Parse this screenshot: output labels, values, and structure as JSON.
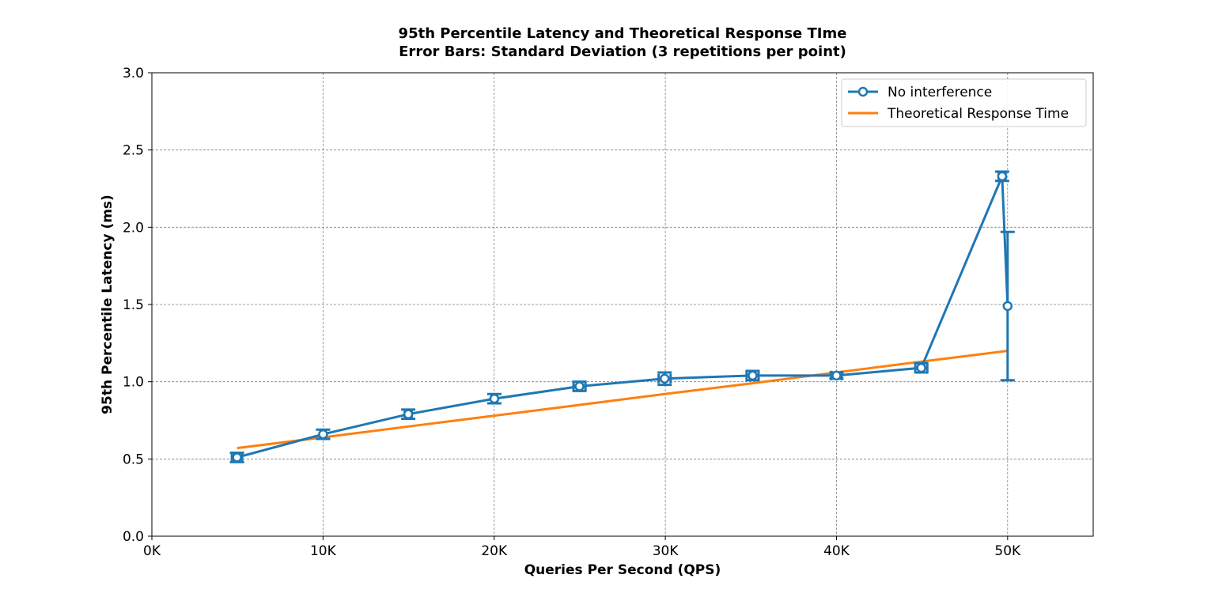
{
  "chart_data": {
    "type": "line",
    "title_line1": "95th Percentile Latency and Theoretical Response TIme",
    "title_line2": "Error Bars: Standard Deviation (3 repetitions per point)",
    "xlabel": "Queries Per Second (QPS)",
    "ylabel": "95th Percentile Latency (ms)",
    "xlim": [
      0,
      55000
    ],
    "ylim": [
      0,
      3.0
    ],
    "x_ticks": [
      0,
      10000,
      20000,
      30000,
      40000,
      50000
    ],
    "x_tick_labels": [
      "0K",
      "10K",
      "20K",
      "30K",
      "40K",
      "50K"
    ],
    "y_ticks": [
      0.0,
      0.5,
      1.0,
      1.5,
      2.0,
      2.5,
      3.0
    ],
    "y_tick_labels": [
      "0.0",
      "0.5",
      "1.0",
      "1.5",
      "2.0",
      "2.5",
      "3.0"
    ],
    "grid": true,
    "legend_position": "top-right",
    "series": [
      {
        "name": "No interference",
        "type": "line-marker-errorbar",
        "color": "#1f77b4",
        "points": [
          {
            "x": 4974,
            "y": 0.51,
            "yerr": 0.03,
            "xerr": 300
          },
          {
            "x": 10004,
            "y": 0.66,
            "yerr": 0.03,
            "xerr": 100
          },
          {
            "x": 14979,
            "y": 0.79,
            "yerr": 0.03,
            "xerr": 200
          },
          {
            "x": 20009,
            "y": 0.89,
            "yerr": 0.03,
            "xerr": 150
          },
          {
            "x": 24984,
            "y": 0.97,
            "yerr": 0.03,
            "xerr": 350
          },
          {
            "x": 29960,
            "y": 1.02,
            "yerr": 0.04,
            "xerr": 350
          },
          {
            "x": 35100,
            "y": 1.04,
            "yerr": 0.03,
            "xerr": 350
          },
          {
            "x": 40000,
            "y": 1.04,
            "yerr": 0.02,
            "xerr": 300
          },
          {
            "x": 44957,
            "y": 1.09,
            "yerr": 0.03,
            "xerr": 350
          },
          {
            "x": 49679,
            "y": 2.33,
            "yerr": 0.03,
            "xerr": 200
          },
          {
            "x": 50000,
            "y": 1.49,
            "yerr": 0.48,
            "xerr": 0
          }
        ]
      },
      {
        "name": "Theoretical Response Time",
        "type": "line",
        "color": "#ff7f0e",
        "points": [
          {
            "x": 4974,
            "y": 0.57
          },
          {
            "x": 10004,
            "y": 0.64
          },
          {
            "x": 14979,
            "y": 0.71
          },
          {
            "x": 20009,
            "y": 0.78
          },
          {
            "x": 24984,
            "y": 0.85
          },
          {
            "x": 29960,
            "y": 0.92
          },
          {
            "x": 35100,
            "y": 0.99
          },
          {
            "x": 40000,
            "y": 1.06
          },
          {
            "x": 44957,
            "y": 1.13
          },
          {
            "x": 50000,
            "y": 1.2
          }
        ]
      }
    ]
  }
}
